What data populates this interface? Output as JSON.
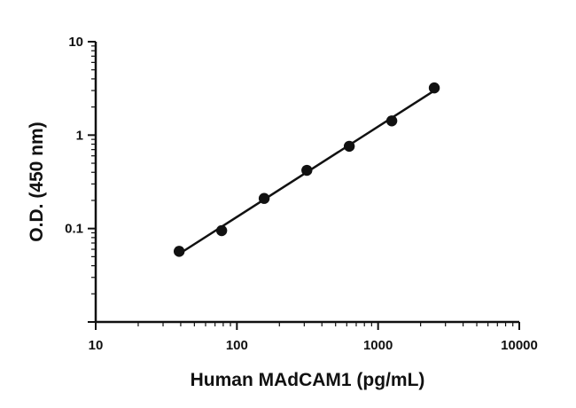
{
  "chart_data": {
    "type": "scatter",
    "xlabel": "Human MAdCAM1 (pg/mL)",
    "ylabel": "O.D. (450 nm)",
    "xscale": "log",
    "yscale": "log",
    "xlim": [
      10,
      10000
    ],
    "ylim": [
      0.01,
      10
    ],
    "x_ticks": [
      "10",
      "100",
      "1000",
      "10000"
    ],
    "y_ticks": [
      "0.1",
      "1",
      "10"
    ],
    "grid": false,
    "series": [
      {
        "points": [
          {
            "x": 39,
            "y": 0.057
          },
          {
            "x": 78,
            "y": 0.095
          },
          {
            "x": 156,
            "y": 0.21
          },
          {
            "x": 313,
            "y": 0.42
          },
          {
            "x": 625,
            "y": 0.76
          },
          {
            "x": 1250,
            "y": 1.42
          },
          {
            "x": 2500,
            "y": 3.2
          }
        ],
        "fit": "line",
        "color": "#111111"
      }
    ]
  }
}
